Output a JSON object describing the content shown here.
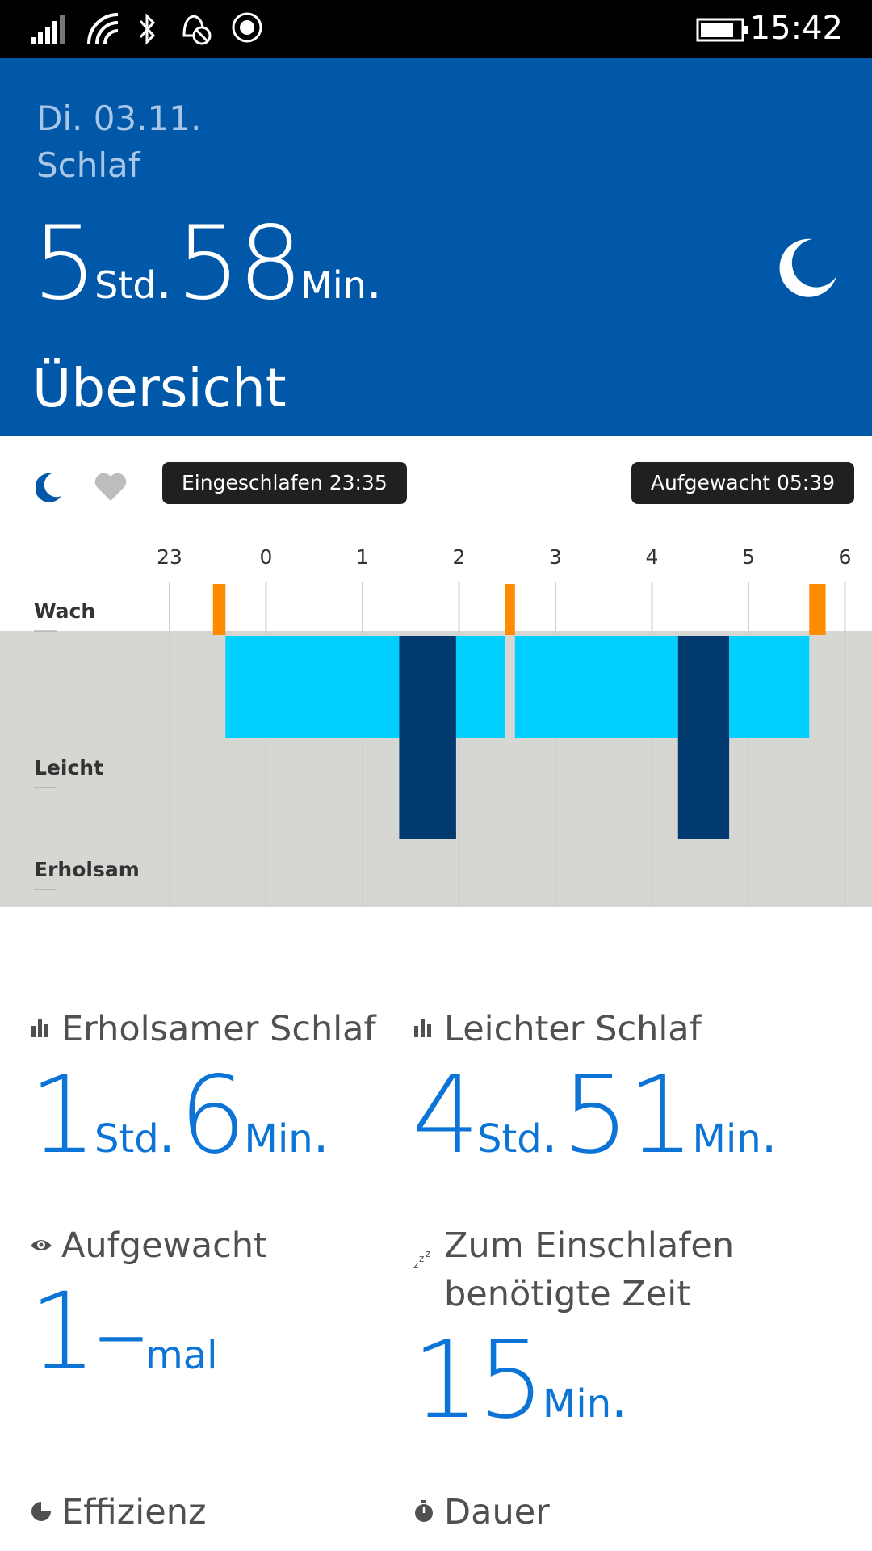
{
  "statusbar": {
    "time": "15:42"
  },
  "header": {
    "date": "Di. 03.11.",
    "subtitle": "Schlaf",
    "total_hours": "5",
    "hours_unit": "Std",
    "total_minutes": "58",
    "minutes_unit": "Min",
    "section_title": "Übersicht",
    "accent_color": "#0158a9"
  },
  "toolbar": {
    "asleep_label": "Eingeschlafen 23:35",
    "awake_label": "Aufgewacht 05:39"
  },
  "chart_data": {
    "type": "bar",
    "x_ticks": [
      "23",
      "0",
      "1",
      "2",
      "3",
      "4",
      "5",
      "6"
    ],
    "levels": [
      "Wach",
      "Leicht",
      "Erholsam"
    ],
    "segments": [
      {
        "level": "Wach",
        "start": 23.45,
        "end": 23.58
      },
      {
        "level": "Leicht",
        "start": 23.58,
        "end": 1.38
      },
      {
        "level": "Erholsam",
        "start": 1.38,
        "end": 1.97
      },
      {
        "level": "Leicht",
        "start": 1.97,
        "end": 2.48
      },
      {
        "level": "Wach",
        "start": 2.48,
        "end": 2.58
      },
      {
        "level": "Leicht",
        "start": 2.58,
        "end": 4.27
      },
      {
        "level": "Erholsam",
        "start": 4.27,
        "end": 4.8
      },
      {
        "level": "Leicht",
        "start": 4.8,
        "end": 5.63
      },
      {
        "level": "Wach",
        "start": 5.63,
        "end": 5.8
      }
    ],
    "colors": {
      "Wach": "#ff8c00",
      "Leicht": "#00cfff",
      "Erholsam": "#003a6e"
    }
  },
  "stats": {
    "deep": {
      "label": "Erholsamer Schlaf",
      "hours": "1",
      "hours_unit": "Std",
      "minutes": "6",
      "minutes_unit": "Min"
    },
    "light": {
      "label": "Leichter Schlaf",
      "hours": "4",
      "hours_unit": "Std",
      "minutes": "51",
      "minutes_unit": "Min"
    },
    "woke": {
      "label": "Aufgewacht",
      "value": "1",
      "unit": "mal"
    },
    "fall_asleep": {
      "label_line1": "Zum Einschlafen",
      "label_line2": "benötigte Zeit",
      "value": "15",
      "unit": "Min"
    },
    "efficiency": {
      "label": "Effizienz"
    },
    "duration": {
      "label": "Dauer"
    }
  }
}
